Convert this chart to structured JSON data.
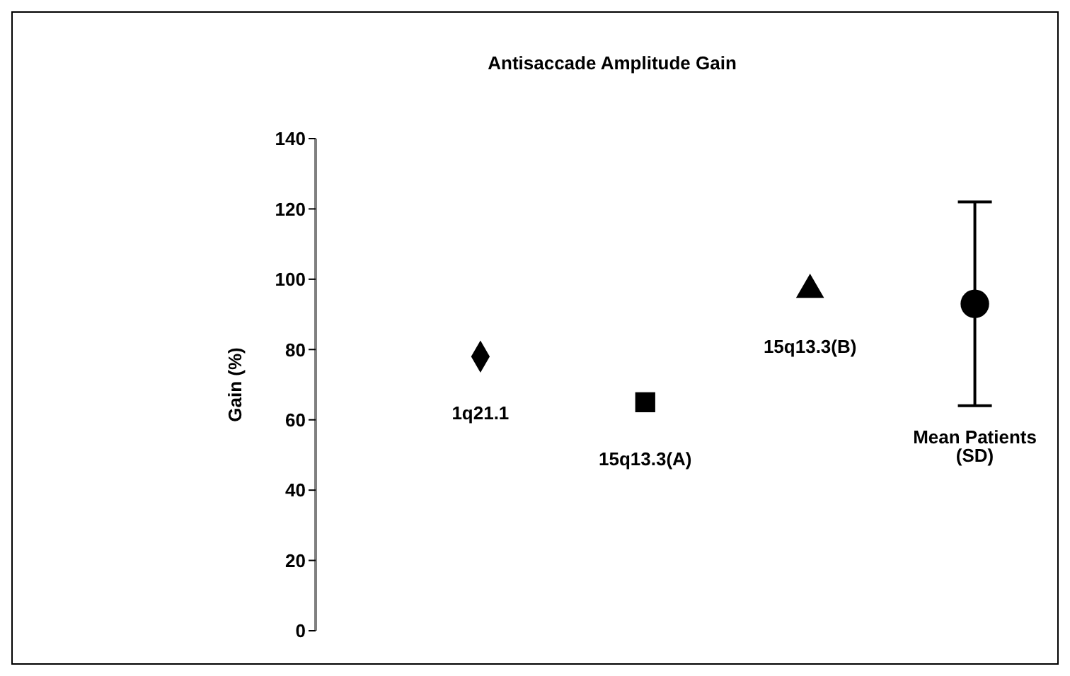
{
  "chart_data": {
    "type": "scatter",
    "title": "Antisaccade Amplitude Gain",
    "ylabel": "Gain (%)",
    "categories": [
      "1q21.1",
      "15q13.3(A)",
      "15q13.3(B)",
      "Mean Patients (SD)"
    ],
    "series": [
      {
        "color": "#000000",
        "marker": "diamond",
        "values": [
          78,
          null,
          null,
          null
        ]
      },
      {
        "color": "#000000",
        "marker": "square",
        "values": [
          null,
          65,
          null,
          null
        ]
      },
      {
        "color": "#000000",
        "marker": "triangle",
        "values": [
          null,
          null,
          97,
          null
        ]
      },
      {
        "color": "#000000",
        "marker": "circle",
        "values": [
          null,
          null,
          null,
          93
        ],
        "errors": [
          null,
          null,
          null,
          29
        ]
      }
    ],
    "ylim": [
      0,
      140
    ],
    "yticks": [
      0,
      20,
      40,
      60,
      80,
      100,
      120,
      140
    ],
    "tick_labels": "y",
    "grid": false,
    "legend": false
  }
}
